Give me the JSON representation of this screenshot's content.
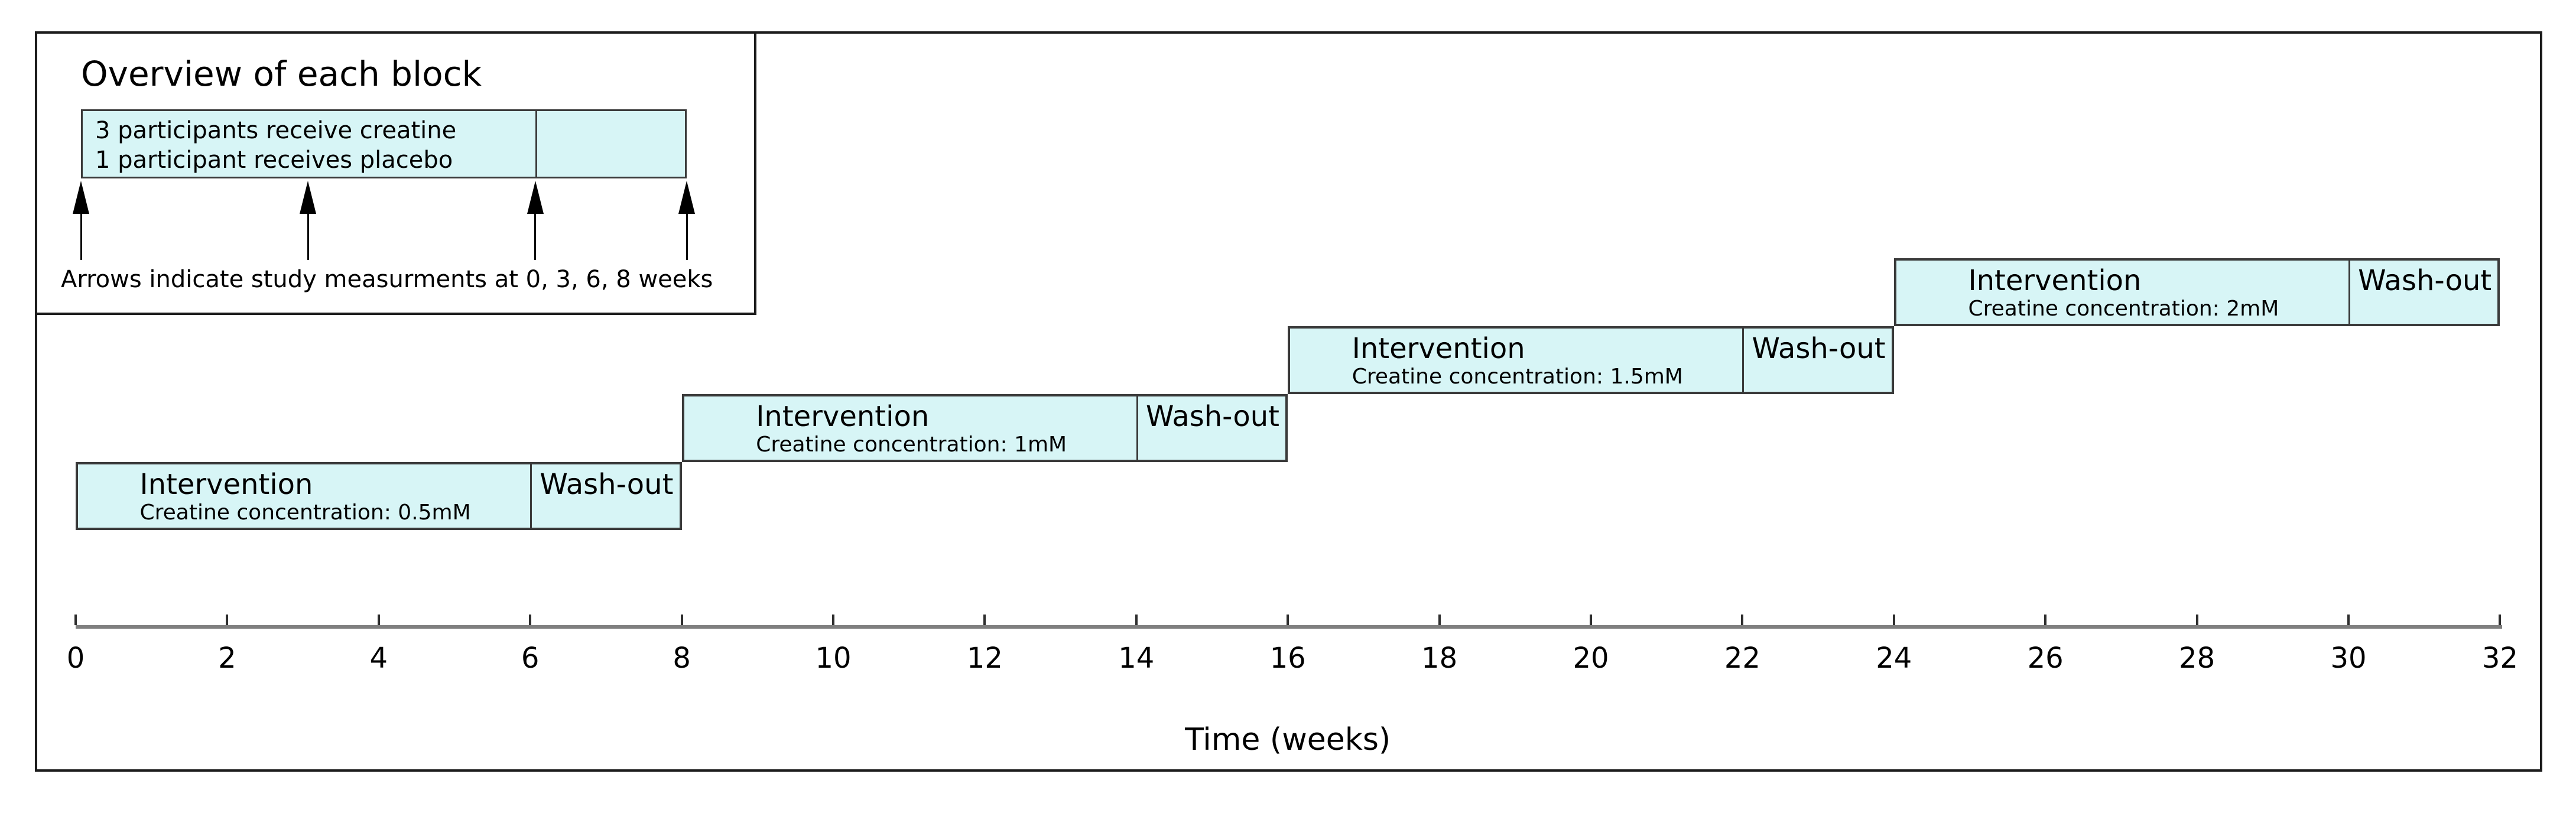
{
  "colors": {
    "block_fill": "#d7f5f6",
    "block_border": "#3a3a3a",
    "axis_line": "#7f7f7f",
    "figure_border": "#1c1c1c"
  },
  "inset": {
    "title": "Overview of each block",
    "bar": {
      "line1": "3 participants receive creatine",
      "line2": "1 participant receives placebo",
      "start_week": 0,
      "divider_week": 6,
      "end_week": 8
    },
    "arrow_weeks": [
      0,
      3,
      6,
      8
    ],
    "caption": "Arrows indicate study measurments at 0, 3, 6, 8 weeks"
  },
  "chart_data": {
    "type": "gantt",
    "title": "",
    "xlabel": "Time (weeks)",
    "xlim": [
      0,
      32
    ],
    "xticks": [
      0,
      2,
      4,
      6,
      8,
      10,
      12,
      14,
      16,
      18,
      20,
      22,
      24,
      26,
      28,
      30,
      32
    ],
    "grid": false,
    "blocks": [
      {
        "label": "Intervention",
        "detail": "Creatine concentration: 0.5mM",
        "washout_label": "Wash-out",
        "start": 0,
        "washout_start": 6,
        "end": 8
      },
      {
        "label": "Intervention",
        "detail": "Creatine concentration: 1mM",
        "washout_label": "Wash-out",
        "start": 8,
        "washout_start": 14,
        "end": 16
      },
      {
        "label": "Intervention",
        "detail": "Creatine concentration: 1.5mM",
        "washout_label": "Wash-out",
        "start": 16,
        "washout_start": 22,
        "end": 24
      },
      {
        "label": "Intervention",
        "detail": "Creatine concentration: 2mM",
        "washout_label": "Wash-out",
        "start": 24,
        "washout_start": 30,
        "end": 32
      }
    ]
  }
}
